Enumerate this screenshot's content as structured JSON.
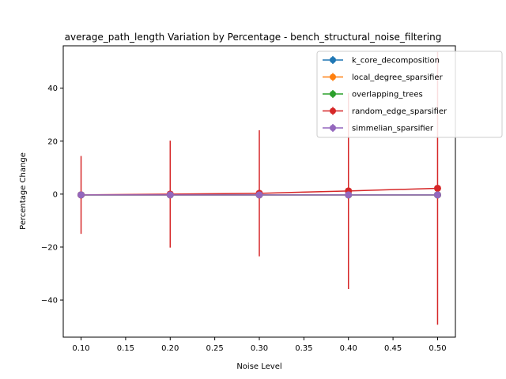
{
  "chart_data": {
    "type": "line",
    "title": "average_path_length Variation by Percentage - bench_structural_noise_filtering",
    "xlabel": "Noise Level",
    "ylabel": "Percentage Change",
    "x": [
      0.1,
      0.2,
      0.3,
      0.4,
      0.5
    ],
    "xlim": [
      0.08,
      0.52
    ],
    "ylim": [
      -54,
      56
    ],
    "x_ticks": [
      0.1,
      0.15,
      0.2,
      0.25,
      0.3,
      0.35,
      0.4,
      0.45,
      0.5
    ],
    "y_ticks": [
      -40,
      -20,
      0,
      20,
      40
    ],
    "grid": false,
    "legend_position": "top-right",
    "series": [
      {
        "name": "k_core_decomposition",
        "color": "#1f77b4",
        "values": [
          -0.3,
          -0.3,
          -0.3,
          -0.3,
          -0.3
        ],
        "errors": [
          0,
          0,
          0,
          0,
          0
        ]
      },
      {
        "name": "local_degree_sparsifier",
        "color": "#ff7f0e",
        "values": [
          -0.3,
          -0.3,
          -0.3,
          -0.3,
          -0.3
        ],
        "errors": [
          0,
          0,
          0,
          0,
          0
        ]
      },
      {
        "name": "overlapping_trees",
        "color": "#2ca02c",
        "values": [
          -0.3,
          -0.3,
          -0.3,
          -0.3,
          -0.3
        ],
        "errors": [
          0,
          0,
          0,
          0,
          0
        ]
      },
      {
        "name": "random_edge_sparsifier",
        "color": "#d62728",
        "values": [
          -0.3,
          0.0,
          0.3,
          1.2,
          2.2
        ],
        "errors": [
          14.7,
          20.2,
          23.8,
          37.0,
          51.5
        ]
      },
      {
        "name": "simmelian_sparsifier",
        "color": "#9467bd",
        "values": [
          -0.3,
          -0.3,
          -0.3,
          -0.3,
          -0.3
        ],
        "errors": [
          0,
          0,
          0,
          0,
          0
        ]
      }
    ]
  }
}
